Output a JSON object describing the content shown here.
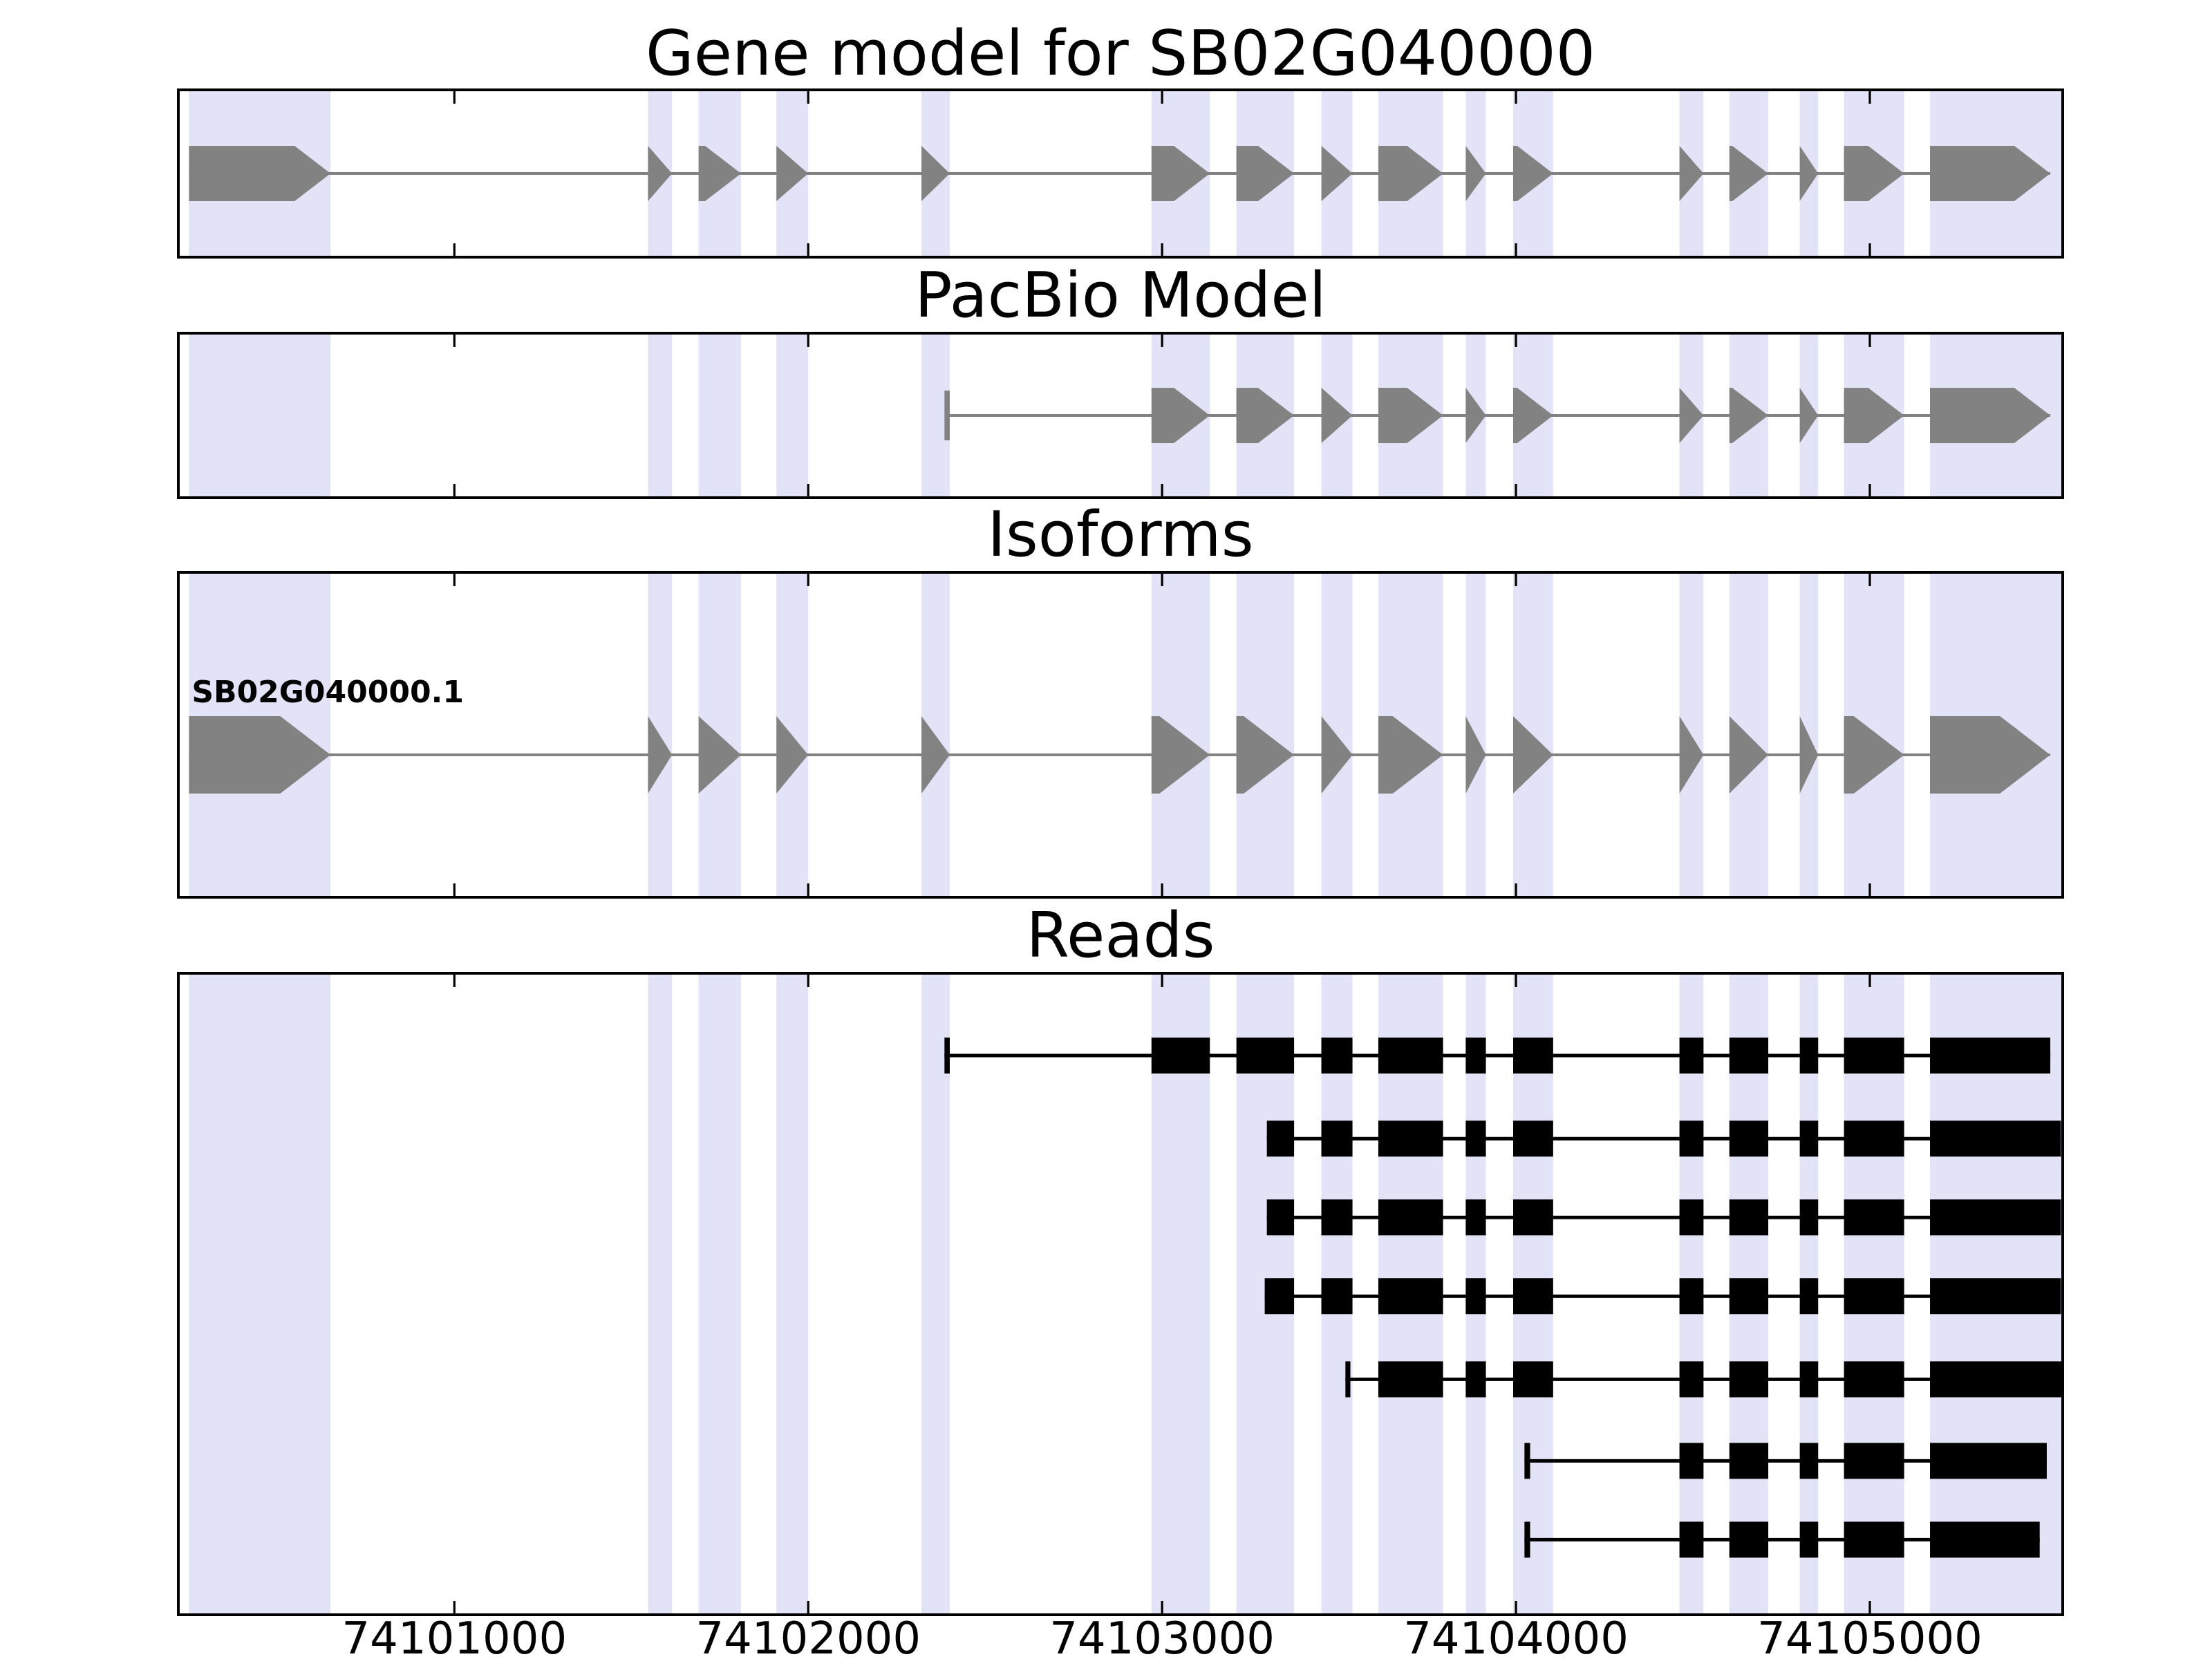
{
  "colors": {
    "background": "#ffffff",
    "model_gray": "#828282",
    "read_black": "#000000",
    "highlight": "#e3e3f8",
    "border": "#000000",
    "text": "#000000"
  },
  "chart_data": {
    "type": "gene-model-browser",
    "panels": [
      {
        "id": "gene_model",
        "title": "Gene model for SB02G040000"
      },
      {
        "id": "pacbio",
        "title": "PacBio Model"
      },
      {
        "id": "isoforms",
        "title": "Isoforms"
      },
      {
        "id": "reads",
        "title": "Reads"
      }
    ],
    "axis": {
      "xmin": 74100220,
      "xmax": 74105545,
      "ticks": [
        74101000,
        74102000,
        74103000,
        74104000,
        74105000
      ],
      "tick_labels": [
        "74101000",
        "74102000",
        "74103000",
        "74104000",
        "74105000"
      ]
    },
    "highlights": [
      [
        74100250,
        74100650
      ],
      [
        74101547,
        74101615
      ],
      [
        74101690,
        74101810
      ],
      [
        74101910,
        74102000
      ],
      [
        74102320,
        74102400
      ],
      [
        74102970,
        74103135
      ],
      [
        74103210,
        74103373
      ],
      [
        74103450,
        74103538
      ],
      [
        74103611,
        74103794
      ],
      [
        74103858,
        74103915
      ],
      [
        74103992,
        74104105
      ],
      [
        74104462,
        74104530
      ],
      [
        74104603,
        74104713
      ],
      [
        74104802,
        74104854
      ],
      [
        74104927,
        74105097
      ],
      [
        74105170,
        74105545
      ]
    ],
    "gene_model": {
      "name": "SB02G040000",
      "strand": "+",
      "exons": [
        [
          74100250,
          74100650
        ],
        [
          74101547,
          74101615
        ],
        [
          74101690,
          74101810
        ],
        [
          74101910,
          74102000
        ],
        [
          74102320,
          74102400
        ],
        [
          74102970,
          74103135
        ],
        [
          74103210,
          74103373
        ],
        [
          74103450,
          74103538
        ],
        [
          74103611,
          74103794
        ],
        [
          74103858,
          74103915
        ],
        [
          74103992,
          74104105
        ],
        [
          74104462,
          74104530
        ],
        [
          74104603,
          74104713
        ],
        [
          74104802,
          74104854
        ],
        [
          74104927,
          74105097
        ],
        [
          74105170,
          74105510
        ]
      ]
    },
    "pacbio_model": {
      "strand": "+",
      "start_tick": [
        74102385,
        74102400
      ],
      "exons": [
        [
          74102970,
          74103135
        ],
        [
          74103210,
          74103373
        ],
        [
          74103450,
          74103538
        ],
        [
          74103611,
          74103794
        ],
        [
          74103858,
          74103915
        ],
        [
          74103992,
          74104105
        ],
        [
          74104462,
          74104530
        ],
        [
          74104603,
          74104713
        ],
        [
          74104802,
          74104854
        ],
        [
          74104927,
          74105097
        ],
        [
          74105170,
          74105510
        ]
      ]
    },
    "isoforms": [
      {
        "name": "SB02G040000.1",
        "strand": "+",
        "exons": [
          [
            74100250,
            74100650
          ],
          [
            74101547,
            74101615
          ],
          [
            74101690,
            74101810
          ],
          [
            74101910,
            74102000
          ],
          [
            74102320,
            74102400
          ],
          [
            74102970,
            74103135
          ],
          [
            74103210,
            74103373
          ],
          [
            74103450,
            74103538
          ],
          [
            74103611,
            74103794
          ],
          [
            74103858,
            74103915
          ],
          [
            74103992,
            74104105
          ],
          [
            74104462,
            74104530
          ],
          [
            74104603,
            74104713
          ],
          [
            74104802,
            74104854
          ],
          [
            74104927,
            74105097
          ],
          [
            74105170,
            74105510
          ]
        ]
      }
    ],
    "reads": [
      {
        "start_tick": [
          74102385,
          74102400
        ],
        "exons": [
          [
            74102970,
            74103135
          ],
          [
            74103210,
            74103373
          ],
          [
            74103450,
            74103538
          ],
          [
            74103611,
            74103794
          ],
          [
            74103858,
            74103915
          ],
          [
            74103992,
            74104105
          ],
          [
            74104462,
            74104530
          ],
          [
            74104603,
            74104713
          ],
          [
            74104802,
            74104854
          ],
          [
            74104927,
            74105097
          ],
          [
            74105170,
            74105510
          ]
        ]
      },
      {
        "exons": [
          [
            74103296,
            74103373
          ],
          [
            74103450,
            74103538
          ],
          [
            74103611,
            74103794
          ],
          [
            74103858,
            74103915
          ],
          [
            74103992,
            74104105
          ],
          [
            74104462,
            74104530
          ],
          [
            74104603,
            74104713
          ],
          [
            74104802,
            74104854
          ],
          [
            74104927,
            74105097
          ],
          [
            74105170,
            74105540
          ]
        ]
      },
      {
        "exons": [
          [
            74103296,
            74103373
          ],
          [
            74103450,
            74103538
          ],
          [
            74103611,
            74103794
          ],
          [
            74103858,
            74103915
          ],
          [
            74103992,
            74104105
          ],
          [
            74104462,
            74104530
          ],
          [
            74104603,
            74104713
          ],
          [
            74104802,
            74104854
          ],
          [
            74104927,
            74105097
          ],
          [
            74105170,
            74105540
          ]
        ]
      },
      {
        "exons": [
          [
            74103290,
            74103373
          ],
          [
            74103450,
            74103538
          ],
          [
            74103611,
            74103794
          ],
          [
            74103858,
            74103915
          ],
          [
            74103992,
            74104105
          ],
          [
            74104462,
            74104530
          ],
          [
            74104603,
            74104713
          ],
          [
            74104802,
            74104854
          ],
          [
            74104927,
            74105097
          ],
          [
            74105170,
            74105540
          ]
        ]
      },
      {
        "start_tick": [
          74103518,
          74103532
        ],
        "exons": [
          [
            74103611,
            74103794
          ],
          [
            74103858,
            74103915
          ],
          [
            74103992,
            74104105
          ],
          [
            74104462,
            74104530
          ],
          [
            74104603,
            74104713
          ],
          [
            74104802,
            74104854
          ],
          [
            74104927,
            74105097
          ],
          [
            74105170,
            74105545
          ]
        ]
      },
      {
        "start_tick": [
          74104024,
          74104040
        ],
        "exons": [
          [
            74104462,
            74104530
          ],
          [
            74104603,
            74104713
          ],
          [
            74104802,
            74104854
          ],
          [
            74104927,
            74105097
          ],
          [
            74105170,
            74105500
          ]
        ]
      },
      {
        "start_tick": [
          74104024,
          74104040
        ],
        "exons": [
          [
            74104462,
            74104530
          ],
          [
            74104603,
            74104713
          ],
          [
            74104802,
            74104854
          ],
          [
            74104927,
            74105097
          ],
          [
            74105170,
            74105480
          ]
        ]
      }
    ]
  }
}
